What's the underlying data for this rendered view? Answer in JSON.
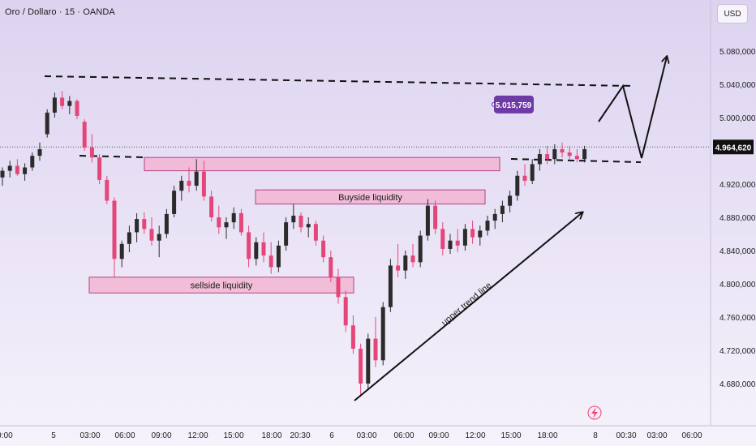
{
  "header": {
    "title": "Oro / Dollaro · 15 · OANDA"
  },
  "price_scale": {
    "currency_button": "USD"
  },
  "chart_data": {
    "type": "candlestick",
    "title": "Oro / Dollaro · 15 · OANDA",
    "y_ticks": [
      "5.080,000",
      "5.040,000",
      "5.000,000",
      "4.920,000",
      "4.880,000",
      "4.840,000",
      "4.800,000",
      "4.760,000",
      "4.720,000",
      "4.680,000"
    ],
    "x_ticks": [
      "9:00",
      "5",
      "03:00",
      "06:00",
      "09:00",
      "12:00",
      "15:00",
      "18:00",
      "20:30",
      "6",
      "03:00",
      "06:00",
      "09:00",
      "12:00",
      "15:00",
      "18:00",
      "8",
      "00:30",
      "03:00",
      "06:00"
    ],
    "current_price": {
      "value": 4964.62,
      "label": "4.964,620"
    },
    "level_marker": {
      "value": 5015.759,
      "label": "5.015,759"
    },
    "zones": [
      {
        "name": "top-supply-zone",
        "label": "",
        "from": 4952,
        "to": 4936
      },
      {
        "name": "buyside-liquidity",
        "label": "Buyside liquidity",
        "from": 4913,
        "to": 4896
      },
      {
        "name": "sellside-liquidity",
        "label": "sellside   liquidity",
        "from": 4808,
        "to": 4789
      }
    ],
    "annotations": {
      "trend_line_label": "upper trend line"
    },
    "colors": {
      "up": "#2b2b2b",
      "down": "#e5467a",
      "zone_fill": "#f2b5d1",
      "zone_border": "#b33f88",
      "marker": "#6e3aa6",
      "background": "#ece6f7"
    },
    "candles": [
      {
        "t": 0,
        "o": 4928,
        "h": 4940,
        "l": 4918,
        "c": 4936
      },
      {
        "t": 1,
        "o": 4936,
        "h": 4948,
        "l": 4928,
        "c": 4942
      },
      {
        "t": 2,
        "o": 4942,
        "h": 4950,
        "l": 4930,
        "c": 4932
      },
      {
        "t": 3,
        "o": 4932,
        "h": 4945,
        "l": 4924,
        "c": 4940
      },
      {
        "t": 4,
        "o": 4940,
        "h": 4958,
        "l": 4936,
        "c": 4954
      },
      {
        "t": 5,
        "o": 4954,
        "h": 4970,
        "l": 4948,
        "c": 4962
      },
      {
        "t": 6,
        "o": 4980,
        "h": 5010,
        "l": 4976,
        "c": 5006
      },
      {
        "t": 7,
        "o": 5006,
        "h": 5030,
        "l": 5000,
        "c": 5024
      },
      {
        "t": 8,
        "o": 5024,
        "h": 5032,
        "l": 5010,
        "c": 5014
      },
      {
        "t": 9,
        "o": 5014,
        "h": 5026,
        "l": 5004,
        "c": 5020
      },
      {
        "t": 10,
        "o": 5020,
        "h": 5022,
        "l": 4998,
        "c": 5002
      },
      {
        "t": 11,
        "o": 4995,
        "h": 4998,
        "l": 4960,
        "c": 4964
      },
      {
        "t": 12,
        "o": 4964,
        "h": 4980,
        "l": 4946,
        "c": 4952
      },
      {
        "t": 13,
        "o": 4952,
        "h": 4956,
        "l": 4920,
        "c": 4925
      },
      {
        "t": 14,
        "o": 4925,
        "h": 4930,
        "l": 4896,
        "c": 4900
      },
      {
        "t": 15,
        "o": 4900,
        "h": 4904,
        "l": 4808,
        "c": 4830
      },
      {
        "t": 16,
        "o": 4830,
        "h": 4852,
        "l": 4820,
        "c": 4848
      },
      {
        "t": 17,
        "o": 4848,
        "h": 4870,
        "l": 4838,
        "c": 4862
      },
      {
        "t": 18,
        "o": 4862,
        "h": 4885,
        "l": 4850,
        "c": 4878
      },
      {
        "t": 19,
        "o": 4878,
        "h": 4886,
        "l": 4860,
        "c": 4866
      },
      {
        "t": 20,
        "o": 4866,
        "h": 4880,
        "l": 4846,
        "c": 4852
      },
      {
        "t": 21,
        "o": 4852,
        "h": 4870,
        "l": 4832,
        "c": 4860
      },
      {
        "t": 22,
        "o": 4860,
        "h": 4890,
        "l": 4855,
        "c": 4884
      },
      {
        "t": 23,
        "o": 4884,
        "h": 4918,
        "l": 4880,
        "c": 4912
      },
      {
        "t": 24,
        "o": 4912,
        "h": 4930,
        "l": 4900,
        "c": 4924
      },
      {
        "t": 25,
        "o": 4924,
        "h": 4940,
        "l": 4910,
        "c": 4918
      },
      {
        "t": 26,
        "o": 4918,
        "h": 4950,
        "l": 4912,
        "c": 4935
      },
      {
        "t": 27,
        "o": 4935,
        "h": 4948,
        "l": 4900,
        "c": 4905
      },
      {
        "t": 28,
        "o": 4905,
        "h": 4912,
        "l": 4875,
        "c": 4880
      },
      {
        "t": 29,
        "o": 4880,
        "h": 4894,
        "l": 4860,
        "c": 4868
      },
      {
        "t": 30,
        "o": 4868,
        "h": 4880,
        "l": 4854,
        "c": 4874
      },
      {
        "t": 31,
        "o": 4874,
        "h": 4892,
        "l": 4866,
        "c": 4885
      },
      {
        "t": 32,
        "o": 4885,
        "h": 4890,
        "l": 4858,
        "c": 4862
      },
      {
        "t": 33,
        "o": 4862,
        "h": 4870,
        "l": 4820,
        "c": 4830
      },
      {
        "t": 34,
        "o": 4830,
        "h": 4856,
        "l": 4822,
        "c": 4850
      },
      {
        "t": 35,
        "o": 4850,
        "h": 4862,
        "l": 4826,
        "c": 4834
      },
      {
        "t": 36,
        "o": 4834,
        "h": 4850,
        "l": 4812,
        "c": 4820
      },
      {
        "t": 37,
        "o": 4820,
        "h": 4852,
        "l": 4814,
        "c": 4846
      },
      {
        "t": 38,
        "o": 4846,
        "h": 4880,
        "l": 4840,
        "c": 4874
      },
      {
        "t": 39,
        "o": 4874,
        "h": 4896,
        "l": 4866,
        "c": 4882
      },
      {
        "t": 40,
        "o": 4882,
        "h": 4886,
        "l": 4862,
        "c": 4868
      },
      {
        "t": 41,
        "o": 4868,
        "h": 4880,
        "l": 4856,
        "c": 4872
      },
      {
        "t": 42,
        "o": 4872,
        "h": 4876,
        "l": 4846,
        "c": 4852
      },
      {
        "t": 43,
        "o": 4852,
        "h": 4858,
        "l": 4826,
        "c": 4832
      },
      {
        "t": 44,
        "o": 4832,
        "h": 4840,
        "l": 4802,
        "c": 4808
      },
      {
        "t": 45,
        "o": 4808,
        "h": 4818,
        "l": 4776,
        "c": 4784
      },
      {
        "t": 46,
        "o": 4784,
        "h": 4792,
        "l": 4742,
        "c": 4750
      },
      {
        "t": 47,
        "o": 4750,
        "h": 4762,
        "l": 4716,
        "c": 4722
      },
      {
        "t": 48,
        "o": 4722,
        "h": 4728,
        "l": 4664,
        "c": 4680
      },
      {
        "t": 49,
        "o": 4680,
        "h": 4740,
        "l": 4672,
        "c": 4734
      },
      {
        "t": 50,
        "o": 4734,
        "h": 4760,
        "l": 4700,
        "c": 4708
      },
      {
        "t": 51,
        "o": 4708,
        "h": 4778,
        "l": 4702,
        "c": 4772
      },
      {
        "t": 52,
        "o": 4772,
        "h": 4830,
        "l": 4766,
        "c": 4822
      },
      {
        "t": 53,
        "o": 4822,
        "h": 4848,
        "l": 4808,
        "c": 4816
      },
      {
        "t": 54,
        "o": 4816,
        "h": 4840,
        "l": 4806,
        "c": 4834
      },
      {
        "t": 55,
        "o": 4834,
        "h": 4848,
        "l": 4820,
        "c": 4826
      },
      {
        "t": 56,
        "o": 4826,
        "h": 4864,
        "l": 4820,
        "c": 4858
      },
      {
        "t": 57,
        "o": 4858,
        "h": 4902,
        "l": 4852,
        "c": 4894
      },
      {
        "t": 58,
        "o": 4894,
        "h": 4900,
        "l": 4860,
        "c": 4866
      },
      {
        "t": 59,
        "o": 4866,
        "h": 4874,
        "l": 4834,
        "c": 4842
      },
      {
        "t": 60,
        "o": 4842,
        "h": 4860,
        "l": 4836,
        "c": 4852
      },
      {
        "t": 61,
        "o": 4852,
        "h": 4866,
        "l": 4838,
        "c": 4846
      },
      {
        "t": 62,
        "o": 4846,
        "h": 4872,
        "l": 4840,
        "c": 4866
      },
      {
        "t": 63,
        "o": 4866,
        "h": 4876,
        "l": 4848,
        "c": 4856
      },
      {
        "t": 64,
        "o": 4856,
        "h": 4870,
        "l": 4846,
        "c": 4864
      },
      {
        "t": 65,
        "o": 4864,
        "h": 4882,
        "l": 4858,
        "c": 4876
      },
      {
        "t": 66,
        "o": 4876,
        "h": 4890,
        "l": 4866,
        "c": 4884
      },
      {
        "t": 67,
        "o": 4884,
        "h": 4900,
        "l": 4874,
        "c": 4894
      },
      {
        "t": 68,
        "o": 4894,
        "h": 4912,
        "l": 4886,
        "c": 4906
      },
      {
        "t": 69,
        "o": 4906,
        "h": 4936,
        "l": 4900,
        "c": 4930
      },
      {
        "t": 70,
        "o": 4930,
        "h": 4944,
        "l": 4918,
        "c": 4924
      },
      {
        "t": 71,
        "o": 4924,
        "h": 4950,
        "l": 4920,
        "c": 4944
      },
      {
        "t": 72,
        "o": 4944,
        "h": 4962,
        "l": 4936,
        "c": 4956
      },
      {
        "t": 73,
        "o": 4956,
        "h": 4966,
        "l": 4944,
        "c": 4950
      },
      {
        "t": 74,
        "o": 4950,
        "h": 4968,
        "l": 4944,
        "c": 4962
      },
      {
        "t": 75,
        "o": 4962,
        "h": 4970,
        "l": 4952,
        "c": 4958
      },
      {
        "t": 76,
        "o": 4958,
        "h": 4966,
        "l": 4950,
        "c": 4954
      },
      {
        "t": 77,
        "o": 4954,
        "h": 4962,
        "l": 4946,
        "c": 4950
      },
      {
        "t": 78,
        "o": 4950,
        "h": 4966,
        "l": 4946,
        "c": 4962
      }
    ]
  }
}
